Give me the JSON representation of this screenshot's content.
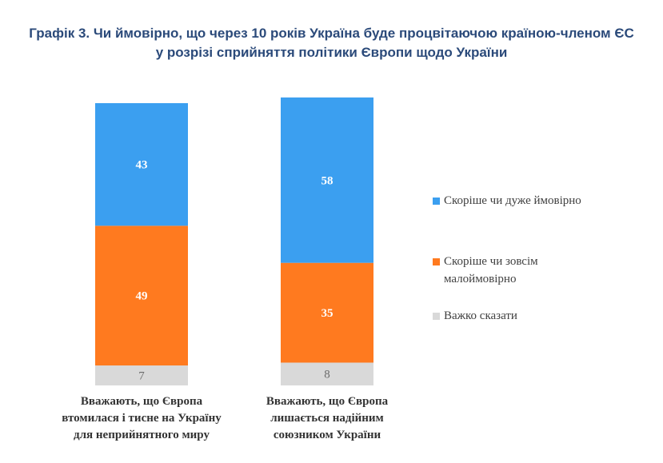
{
  "title": {
    "line1": "Графік 3. Чи ймовірно, що через 10 років Україна буде процвітаючою країною-членом ЄС",
    "line2": "у розрізі сприйняття політики Європи щодо України"
  },
  "colors": {
    "likely": "#3b9ff0",
    "unlikely": "#ff7a1f",
    "hard_to_say": "#d9d9d9"
  },
  "chart_data": {
    "type": "bar",
    "stacked": true,
    "categories": [
      "Вважають, що Європа втомилася і тисне на Україну для неприйнятного миру",
      "Вважають, що Європа лишається надійним союзником України"
    ],
    "category_lines": [
      [
        "Вважають, що Європа",
        "втомилася і тисне на Україну",
        "для неприйнятного миру"
      ],
      [
        "Вважають, що Європа",
        "лишається надійним",
        "союзником України"
      ]
    ],
    "series": [
      {
        "name": "Важко сказати",
        "values": [
          7,
          8
        ],
        "color": "#d9d9d9"
      },
      {
        "name": "Скоріше чи зовсім малоймовірно",
        "values": [
          49,
          35
        ],
        "color": "#ff7a1f"
      },
      {
        "name": "Скоріше чи дуже ймовірно",
        "values": [
          43,
          58
        ],
        "color": "#3b9ff0"
      }
    ],
    "ylim": [
      0,
      99
    ],
    "grid": false,
    "legend": "right"
  },
  "legend": {
    "items": [
      {
        "lines": [
          "Скоріше чи дуже ймовірно"
        ],
        "color": "#3b9ff0"
      },
      {
        "lines": [
          "Скоріше чи зовсім",
          "малоймовірно"
        ],
        "color": "#ff7a1f"
      },
      {
        "lines": [
          "Важко сказати"
        ],
        "color": "#d9d9d9"
      }
    ]
  }
}
